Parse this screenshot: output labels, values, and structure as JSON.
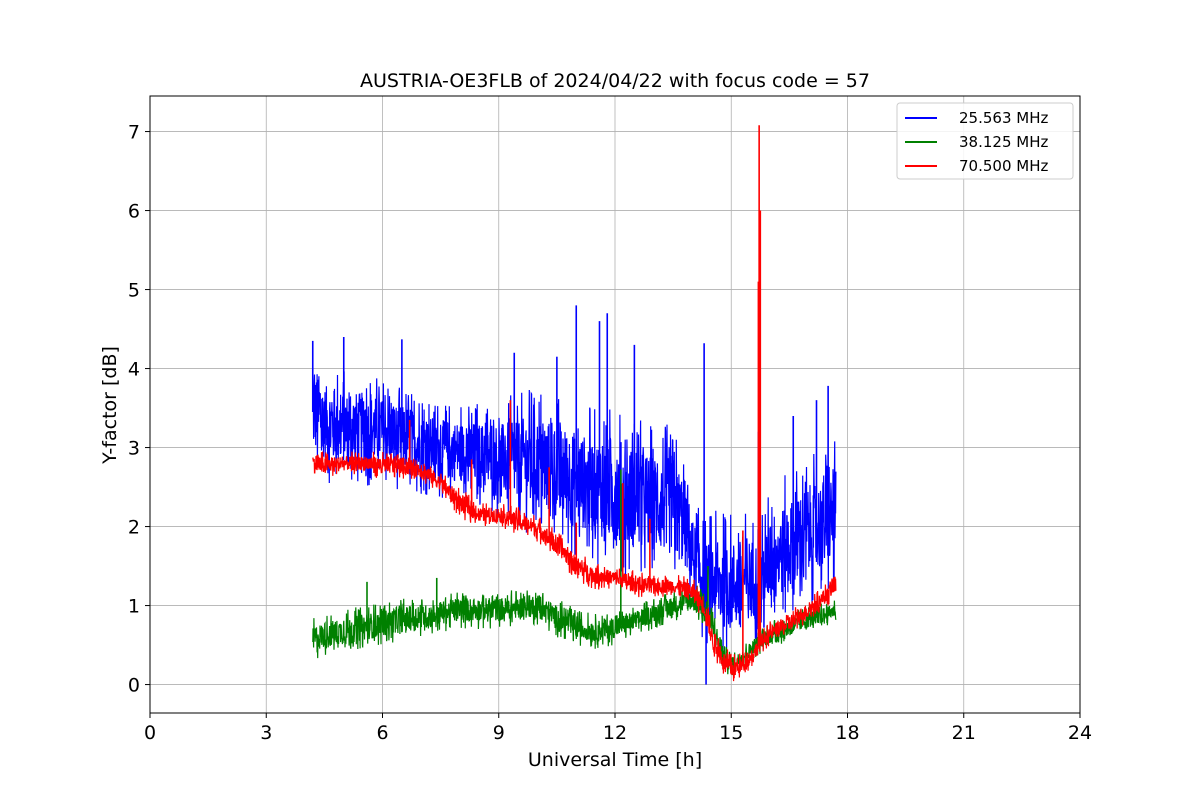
{
  "chart_data": {
    "type": "line",
    "title": "AUSTRIA-OE3FLB of 2024/04/22 with focus code = 57",
    "xlabel": "Universal Time [h]",
    "ylabel": "Y-factor [dB]",
    "xlim": [
      0,
      24
    ],
    "ylim": [
      -0.36,
      7.45
    ],
    "xticks": [
      "0",
      "3",
      "6",
      "9",
      "12",
      "15",
      "18",
      "21",
      "24"
    ],
    "yticks": [
      "0",
      "1",
      "2",
      "3",
      "4",
      "5",
      "6",
      "7"
    ],
    "grid": true,
    "legend_position": "top-right",
    "series": [
      {
        "name": "25.563 MHz",
        "color": "#0000ff",
        "x": [
          4.2,
          4.5,
          5.0,
          5.5,
          6.0,
          6.5,
          7.0,
          7.5,
          8.0,
          8.5,
          9.0,
          9.5,
          10.0,
          10.5,
          11.0,
          11.5,
          12.0,
          12.5,
          13.0,
          13.5,
          13.8,
          14.0,
          14.3,
          14.5,
          15.0,
          15.3,
          15.5,
          15.75,
          16.0,
          16.5,
          17.0,
          17.5,
          17.7
        ],
        "low": [
          2.6,
          2.55,
          2.5,
          2.5,
          2.5,
          2.45,
          2.4,
          2.35,
          2.3,
          2.2,
          2.1,
          2.0,
          1.8,
          1.7,
          1.6,
          1.5,
          1.3,
          1.3,
          1.3,
          1.2,
          1.1,
          0.9,
          0.5,
          0.4,
          0.3,
          0.4,
          0.5,
          0.5,
          0.7,
          0.8,
          1.0,
          1.1,
          1.2
        ],
        "high": [
          4.3,
          4.1,
          4.0,
          4.0,
          3.9,
          3.8,
          3.7,
          3.6,
          3.6,
          3.6,
          3.6,
          3.7,
          3.8,
          3.7,
          3.6,
          3.5,
          3.6,
          3.4,
          3.3,
          3.3,
          3.0,
          2.4,
          2.1,
          2.2,
          2.2,
          2.2,
          2.2,
          2.1,
          2.5,
          2.7,
          2.9,
          3.0,
          3.1
        ],
        "peaks": [
          [
            4.2,
            4.35
          ],
          [
            5.0,
            4.4
          ],
          [
            6.5,
            4.37
          ],
          [
            9.4,
            4.2
          ],
          [
            10.5,
            4.15
          ],
          [
            11.0,
            4.8
          ],
          [
            11.6,
            4.6
          ],
          [
            11.8,
            4.7
          ],
          [
            12.5,
            4.3
          ],
          [
            14.3,
            4.32
          ],
          [
            14.35,
            0.0
          ],
          [
            15.7,
            3.2
          ],
          [
            16.6,
            3.4
          ],
          [
            17.2,
            3.6
          ],
          [
            17.5,
            3.78
          ]
        ]
      },
      {
        "name": "38.125 MHz",
        "color": "#008000",
        "x": [
          4.2,
          4.5,
          5.0,
          5.5,
          6.0,
          6.5,
          7.0,
          7.5,
          8.0,
          8.5,
          9.0,
          9.5,
          10.0,
          10.5,
          11.0,
          11.5,
          12.0,
          12.5,
          13.0,
          13.5,
          14.0,
          14.3,
          14.5,
          14.8,
          15.0,
          15.3,
          15.5,
          15.8,
          16.0,
          16.5,
          17.0,
          17.5,
          17.7
        ],
        "low": [
          0.3,
          0.35,
          0.4,
          0.45,
          0.5,
          0.55,
          0.6,
          0.65,
          0.7,
          0.7,
          0.7,
          0.75,
          0.75,
          0.6,
          0.5,
          0.45,
          0.5,
          0.6,
          0.7,
          0.8,
          0.85,
          0.7,
          0.5,
          0.15,
          0.1,
          0.2,
          0.3,
          0.4,
          0.45,
          0.55,
          0.65,
          0.75,
          0.8
        ],
        "high": [
          0.85,
          0.9,
          0.95,
          1.0,
          1.05,
          1.1,
          1.1,
          1.15,
          1.2,
          1.2,
          1.2,
          1.2,
          1.25,
          1.1,
          0.95,
          0.9,
          0.95,
          1.0,
          1.1,
          1.2,
          1.3,
          1.2,
          1.0,
          0.6,
          0.4,
          0.5,
          0.6,
          0.75,
          0.8,
          0.9,
          1.0,
          1.05,
          1.1
        ],
        "peaks": [
          [
            5.6,
            1.3
          ],
          [
            7.4,
            1.35
          ],
          [
            12.15,
            2.72
          ],
          [
            14.4,
            1.5
          ]
        ]
      },
      {
        "name": "70.500 MHz",
        "color": "#ff0000",
        "x": [
          4.2,
          4.5,
          5.0,
          5.5,
          6.0,
          6.5,
          7.0,
          7.5,
          8.0,
          8.5,
          9.0,
          9.5,
          10.0,
          10.5,
          11.0,
          11.5,
          12.0,
          12.5,
          13.0,
          13.5,
          14.0,
          14.3,
          14.5,
          14.8,
          15.0,
          15.3,
          15.5,
          15.8,
          16.0,
          16.5,
          17.0,
          17.5,
          17.7
        ],
        "low": [
          2.6,
          2.6,
          2.65,
          2.65,
          2.6,
          2.6,
          2.55,
          2.4,
          2.1,
          2.0,
          2.0,
          1.9,
          1.8,
          1.6,
          1.3,
          1.2,
          1.2,
          1.1,
          1.1,
          1.1,
          1.0,
          0.8,
          0.4,
          0.1,
          0.0,
          0.1,
          0.2,
          0.4,
          0.5,
          0.6,
          0.8,
          1.0,
          1.1
        ],
        "high": [
          3.0,
          2.95,
          2.95,
          2.95,
          2.95,
          2.95,
          2.9,
          2.7,
          2.5,
          2.3,
          2.3,
          2.25,
          2.15,
          1.95,
          1.7,
          1.55,
          1.5,
          1.45,
          1.4,
          1.4,
          1.35,
          1.2,
          0.8,
          0.5,
          0.4,
          0.4,
          0.5,
          0.7,
          0.8,
          0.95,
          1.1,
          1.3,
          1.5
        ],
        "peaks": [
          [
            6.7,
            3.35
          ],
          [
            8.3,
            2.85
          ],
          [
            9.3,
            3.6
          ],
          [
            10.3,
            2.75
          ],
          [
            11.0,
            2.05
          ],
          [
            12.2,
            2.55
          ],
          [
            12.9,
            2.1
          ],
          [
            15.3,
            1.95
          ],
          [
            15.7,
            5.1
          ],
          [
            15.72,
            7.08
          ],
          [
            15.75,
            6.0
          ]
        ]
      }
    ]
  }
}
